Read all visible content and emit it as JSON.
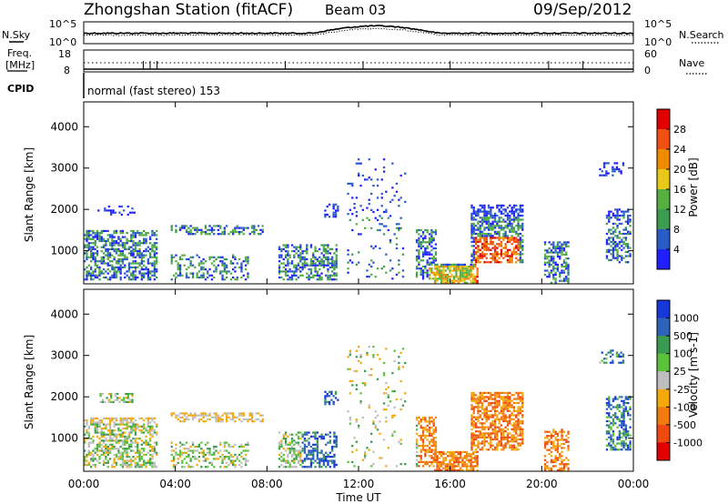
{
  "header": {
    "station": "Zhongshan Station (fitACF)",
    "beam": "Beam 03",
    "date": "09/Sep/2012"
  },
  "noise_panel": {
    "left_label": "N.Sky",
    "right_label": "N.Search",
    "left_ticks": [
      "10^5",
      "10^0"
    ],
    "right_ticks": [
      "10^5",
      "10^0"
    ]
  },
  "freq_panel": {
    "left_label_1": "Freq.",
    "left_label_2": "[MHz]",
    "right_label": "Nave",
    "left_ticks": [
      "18",
      "8"
    ],
    "right_ticks": [
      "60",
      "0"
    ]
  },
  "cpid": {
    "label": "CPID",
    "text": "normal (fast stereo) 153"
  },
  "colors": {
    "power": [
      "#1f1fff",
      "#2a5cc8",
      "#3c9c50",
      "#55b040",
      "#e9c81a",
      "#f08a00",
      "#f05010",
      "#e00000"
    ],
    "velocity": [
      "#1638d8",
      "#2b64b8",
      "#3a9a50",
      "#5cc23c",
      "#bebebe",
      "#f4a80a",
      "#f27a10",
      "#ef4a10",
      "#e00000"
    ]
  },
  "chart_data": [
    {
      "type": "heatmap",
      "name": "power",
      "ylabel": "Slant Range [km]",
      "yticks": [
        "1000",
        "2000",
        "3000",
        "4000"
      ],
      "ylim": [
        200,
        4600
      ],
      "xlim": [
        0,
        24
      ],
      "colorbar_label": "Power [dB]",
      "colorbar_ticks": [
        "4",
        "8",
        "12",
        "16",
        "20",
        "24",
        "28"
      ],
      "colorbar_range": [
        0,
        32
      ]
    },
    {
      "type": "heatmap",
      "name": "velocity",
      "ylabel": "Slant Range [km]",
      "yticks": [
        "1000",
        "2000",
        "3000",
        "4000"
      ],
      "ylim": [
        200,
        4600
      ],
      "xlim": [
        0,
        24
      ],
      "colorbar_label": "Velocity [m s-1]",
      "colorbar_ticks": [
        "1000",
        "500",
        "100",
        "25",
        "-25",
        "-100",
        "-500",
        "-1000"
      ]
    }
  ],
  "xaxis": {
    "label": "Time UT",
    "ticks": [
      "00:00",
      "04:00",
      "08:00",
      "12:00",
      "16:00",
      "20:00",
      "00:00"
    ]
  }
}
